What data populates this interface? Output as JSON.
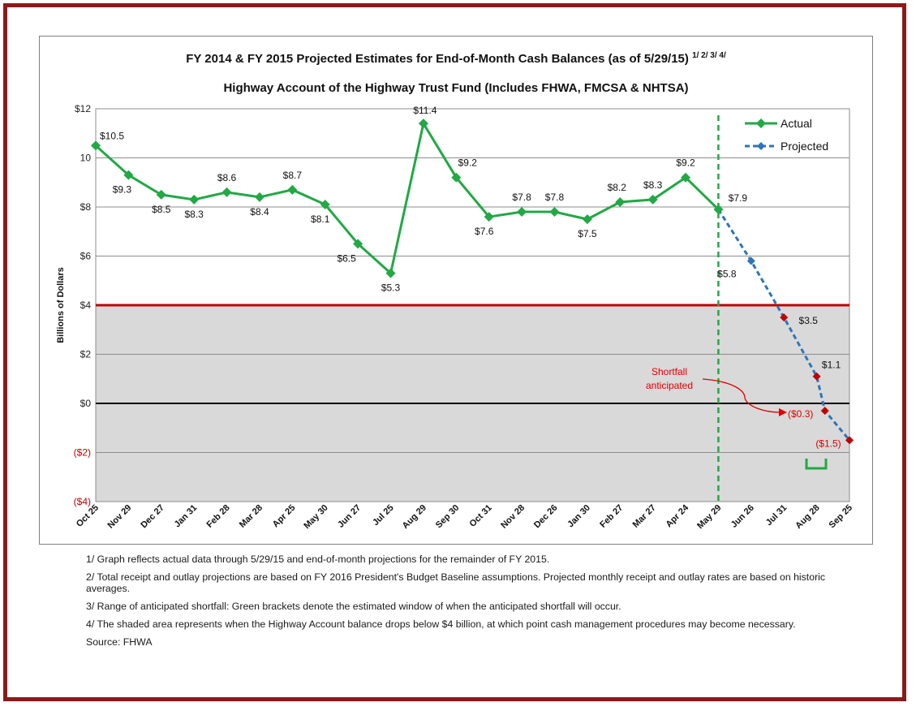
{
  "header": {
    "title_line1": "FY 2014 & FY 2015 Projected Estimates for End-of-Month Cash Balances (as of 5/29/15)",
    "title_footnote_marks": "1/ 2/ 3/ 4/",
    "title_line2": "Highway Account of the Highway Trust Fund (Includes FHWA, FMCSA & NHTSA)"
  },
  "chart_data": {
    "type": "line",
    "title": "FY 2014 & FY 2015 Projected Estimates for End-of-Month Cash Balances (as of 5/29/15)",
    "subtitle": "Highway Account of the Highway Trust Fund (Includes FHWA, FMCSA & NHTSA)",
    "xlabel": "",
    "ylabel": "Billions of Dollars",
    "ylim": [
      -4,
      12
    ],
    "yticks": [
      12,
      10,
      8,
      6,
      4,
      2,
      0,
      -2,
      -4
    ],
    "ytick_labels": [
      "$12",
      "10",
      "$8",
      "$6",
      "$4",
      "$2",
      "$0",
      "($2)",
      "($4)"
    ],
    "categories": [
      "Oct 25",
      "Nov 29",
      "Dec 27",
      "Jan 31",
      "Feb 28",
      "Mar 28",
      "Apr 25",
      "May 30",
      "Jun 27",
      "Jul 25",
      "Aug 29",
      "Sep 30",
      "Oct 31",
      "Nov 28",
      "Dec 26",
      "Jan 30",
      "Feb 27",
      "Mar 27",
      "Apr 24",
      "May 29",
      "Jun 26",
      "Jul 31",
      "Aug 28",
      "Sep 25"
    ],
    "series": [
      {
        "name": "Actual",
        "color": "#22a845",
        "values": [
          10.5,
          9.3,
          8.5,
          8.3,
          8.6,
          8.4,
          8.7,
          8.1,
          6.5,
          5.3,
          11.4,
          9.2,
          7.6,
          7.8,
          7.8,
          7.5,
          8.2,
          8.3,
          9.2,
          7.9,
          null,
          null,
          null,
          null
        ],
        "labels": [
          "$10.5",
          "$9.3",
          "$8.5",
          "$8.3",
          "$8.6",
          "$8.4",
          "$8.7",
          "$8.1",
          "$6.5",
          "$5.3",
          "$11.4",
          "$9.2",
          "$7.6",
          "$7.8",
          "$7.8",
          "$7.5",
          "$8.2",
          "$8.3",
          "$9.2",
          "$7.9",
          null,
          null,
          null,
          null
        ]
      },
      {
        "name": "Projected",
        "color": "#2e75b6",
        "values": [
          null,
          null,
          null,
          null,
          null,
          null,
          null,
          null,
          null,
          null,
          null,
          null,
          null,
          null,
          null,
          null,
          null,
          null,
          null,
          7.9,
          5.8,
          3.5,
          1.1,
          -1.5
        ],
        "extra_point": {
          "after": "Aug 28",
          "value": -0.3,
          "label": "($0.3)"
        },
        "labels": [
          null,
          null,
          null,
          null,
          null,
          null,
          null,
          null,
          null,
          null,
          null,
          null,
          null,
          null,
          null,
          null,
          null,
          null,
          null,
          null,
          "$5.8",
          "$3.5",
          "$1.1",
          "($1.5)"
        ]
      }
    ],
    "reference_lines": [
      {
        "value": 4,
        "color": "#c00000",
        "note": "shaded area below"
      },
      {
        "value": 0,
        "color": "#000000"
      }
    ],
    "vertical_marker": {
      "at": "May 29",
      "color": "#22a845",
      "style": "dashed"
    },
    "annotations": [
      {
        "text": "Shortfall anticipated",
        "color": "#e00000",
        "points_to": "($0.3)"
      }
    ],
    "legend": {
      "position": "top-right",
      "entries": [
        "Actual",
        "Projected"
      ]
    },
    "shaded_region": {
      "from": -4,
      "to": 4,
      "color": "#d9d9d9"
    },
    "bracket": {
      "color": "#22a845",
      "description": "shortfall window bracket"
    }
  },
  "notes": [
    "1/ Graph reflects actual data through 5/29/15 and end-of-month projections for the remainder of FY 2015.",
    "2/ Total receipt and outlay projections are based on FY 2016 President's Budget Baseline assumptions.  Projected monthly receipt and outlay rates are based on historic averages.",
    "3/ Range of anticipated shortfall: Green brackets denote the estimated window of when the anticipated shortfall will occur.",
    "4/ The shaded area represents when the Highway Account balance drops below $4 billion, at which point cash management procedures may become necessary.",
    "Source: FHWA"
  ],
  "annotation_text": {
    "shortfall_line1": "Shortfall",
    "shortfall_line2": "anticipated"
  }
}
